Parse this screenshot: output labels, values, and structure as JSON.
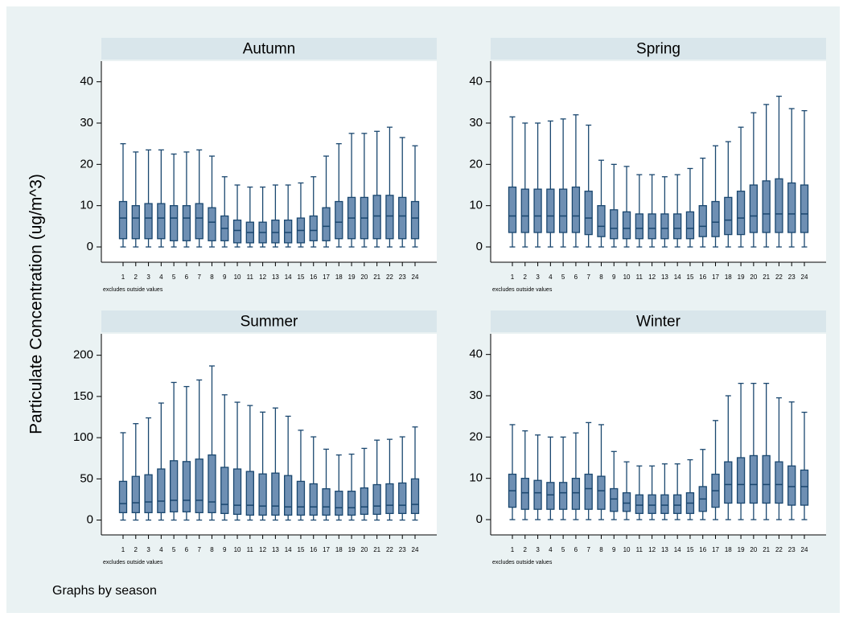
{
  "y_axis_title": "Particulate Concentration (ug/m^3)",
  "footer": "Graphs by season",
  "chart_data": [
    {
      "type": "box",
      "title": "Autumn",
      "note": "excludes outside values",
      "categories": [
        "1",
        "2",
        "3",
        "4",
        "5",
        "6",
        "7",
        "8",
        "9",
        "10",
        "11",
        "12",
        "13",
        "14",
        "15",
        "16",
        "17",
        "18",
        "19",
        "20",
        "21",
        "22",
        "23",
        "24"
      ],
      "low": [
        0,
        0,
        0,
        0,
        0,
        0,
        0,
        0,
        0,
        0,
        0,
        0,
        0,
        0,
        0,
        0,
        0,
        0,
        0,
        0,
        0,
        0,
        0,
        0
      ],
      "q1": [
        2,
        2,
        2,
        2,
        1.5,
        1.5,
        2,
        1.5,
        1.5,
        1,
        1,
        1,
        1,
        1,
        1,
        1.5,
        1.5,
        2,
        2,
        2,
        2,
        2,
        2,
        2
      ],
      "median": [
        7,
        7,
        7,
        7,
        7,
        7,
        7,
        6,
        4.5,
        4,
        3.5,
        3.5,
        3.5,
        3.5,
        4,
        4,
        5,
        6,
        7,
        7,
        7.5,
        7.5,
        7.5,
        7
      ],
      "q3": [
        11,
        10,
        10.5,
        10.5,
        10,
        10,
        10.5,
        9.5,
        7.5,
        6.5,
        6,
        6,
        6.5,
        6.5,
        7,
        7.5,
        9.5,
        11,
        12,
        12,
        12.5,
        12.5,
        12,
        11
      ],
      "high": [
        25,
        23,
        23.5,
        23.5,
        22.5,
        23,
        23.5,
        22,
        17,
        15,
        14.5,
        14.5,
        15,
        15,
        15.5,
        17,
        22,
        25,
        27.5,
        27.5,
        28,
        29,
        26.5,
        24.5
      ],
      "color": "#6e8fb3",
      "ylim": [
        -3.7,
        45
      ],
      "yticks": [
        0,
        10,
        20,
        30,
        40
      ]
    },
    {
      "type": "box",
      "title": "Spring",
      "note": "excludes outside values",
      "categories": [
        "1",
        "2",
        "3",
        "4",
        "5",
        "6",
        "7",
        "8",
        "9",
        "10",
        "11",
        "12",
        "13",
        "14",
        "15",
        "16",
        "17",
        "18",
        "19",
        "20",
        "21",
        "22",
        "23",
        "24"
      ],
      "low": [
        0,
        0,
        0,
        0,
        0,
        0,
        0,
        0,
        0,
        0,
        0,
        0,
        0,
        0,
        0,
        0,
        0,
        0,
        0,
        0,
        0,
        0,
        0,
        0
      ],
      "q1": [
        3.5,
        3.5,
        3.5,
        3.5,
        3.5,
        3.5,
        3,
        2.5,
        2,
        2,
        2,
        2,
        2,
        2,
        2,
        2.5,
        2.5,
        3,
        3,
        3.5,
        3.5,
        3.5,
        3.5,
        3.5
      ],
      "median": [
        7.5,
        7.5,
        7.5,
        7.5,
        7.5,
        7.5,
        7,
        5,
        4.5,
        4.5,
        4.5,
        4.5,
        4.5,
        4.5,
        4.5,
        5,
        6,
        6.5,
        7,
        7.5,
        8,
        8,
        8,
        8
      ],
      "q3": [
        14.5,
        14,
        14,
        14,
        14,
        14.5,
        13.5,
        10,
        9,
        8.5,
        8,
        8,
        8,
        8,
        8.5,
        10,
        11,
        12,
        13.5,
        15,
        16,
        16.5,
        15.5,
        15
      ],
      "high": [
        31.5,
        30,
        30,
        30.5,
        31,
        32,
        29.5,
        21,
        20,
        19.5,
        17.5,
        17.5,
        17,
        17.5,
        19,
        21.5,
        24.5,
        25.5,
        29,
        32.5,
        34.5,
        36.5,
        33.5,
        33
      ],
      "color": "#6e8fb3",
      "ylim": [
        -3.7,
        45
      ],
      "yticks": [
        0,
        10,
        20,
        30,
        40
      ]
    },
    {
      "type": "box",
      "title": "Summer",
      "note": "excludes outside values",
      "categories": [
        "1",
        "2",
        "3",
        "4",
        "5",
        "6",
        "7",
        "8",
        "9",
        "10",
        "11",
        "12",
        "13",
        "14",
        "15",
        "16",
        "17",
        "18",
        "19",
        "20",
        "21",
        "22",
        "23",
        "24"
      ],
      "low": [
        0,
        0,
        0,
        0,
        0,
        0,
        0,
        0,
        0,
        0,
        0,
        0,
        0,
        0,
        0,
        0,
        0,
        0,
        0,
        0,
        0,
        0,
        0,
        0
      ],
      "q1": [
        9,
        9,
        9,
        9,
        10,
        10,
        9,
        9,
        8,
        7,
        6,
        6,
        6,
        6,
        6,
        6,
        6,
        6,
        6,
        7,
        7,
        8,
        8,
        8
      ],
      "median": [
        20,
        21,
        22,
        23,
        24,
        24,
        24,
        22,
        19,
        18,
        18,
        17,
        17,
        16,
        16,
        16,
        16,
        15,
        15,
        16,
        17,
        18,
        18,
        19
      ],
      "q3": [
        47,
        53,
        55,
        62,
        72,
        71,
        74,
        79,
        64,
        62,
        59,
        56,
        57,
        54,
        47,
        44,
        38,
        35,
        35,
        39,
        43,
        44,
        45,
        50
      ],
      "high": [
        106,
        117,
        124,
        142,
        167,
        162,
        170,
        187,
        152,
        143,
        139,
        131,
        136,
        126,
        109,
        101,
        86,
        79,
        80,
        87,
        97,
        98,
        101,
        113
      ],
      "color": "#6e8fb3",
      "ylim": [
        -18,
        226
      ],
      "yticks": [
        0,
        50,
        100,
        150,
        200
      ]
    },
    {
      "type": "box",
      "title": "Winter",
      "note": "excludes outside values",
      "categories": [
        "1",
        "2",
        "3",
        "4",
        "5",
        "6",
        "7",
        "8",
        "9",
        "10",
        "11",
        "12",
        "13",
        "14",
        "15",
        "16",
        "17",
        "18",
        "19",
        "20",
        "21",
        "22",
        "23",
        "24"
      ],
      "low": [
        0,
        0,
        0,
        0,
        0,
        0,
        0,
        0,
        0,
        0,
        0,
        0,
        0,
        0,
        0,
        0,
        0,
        0,
        0,
        0,
        0,
        0,
        0,
        0
      ],
      "q1": [
        3,
        2.5,
        2.5,
        2.5,
        2.5,
        2.5,
        2.5,
        2.5,
        2,
        2,
        1.5,
        1.5,
        1.5,
        1.5,
        1.5,
        2,
        3,
        4,
        4,
        4,
        4,
        4,
        3.5,
        3.5
      ],
      "median": [
        7,
        6.5,
        6.5,
        6,
        6.5,
        6.5,
        7.5,
        7,
        5,
        4,
        3.5,
        3.5,
        3.5,
        3.5,
        4,
        5,
        7,
        8.5,
        8.5,
        8.5,
        8.5,
        8.5,
        8,
        8
      ],
      "q3": [
        11,
        10,
        9.5,
        9,
        9,
        10,
        11,
        10.5,
        7.5,
        6.5,
        6,
        6,
        6,
        6,
        6.5,
        8,
        11,
        14,
        15,
        15.5,
        15.5,
        14,
        13,
        12
      ],
      "high": [
        23,
        21.5,
        20.5,
        20,
        20,
        21,
        23.5,
        23,
        16.5,
        14,
        13,
        13,
        13.5,
        13.5,
        14.5,
        17,
        24,
        30,
        33,
        33,
        33,
        29.5,
        28.5,
        26
      ],
      "color": "#6e8fb3",
      "ylim": [
        -3.7,
        45
      ],
      "yticks": [
        0,
        10,
        20,
        30,
        40
      ]
    }
  ]
}
